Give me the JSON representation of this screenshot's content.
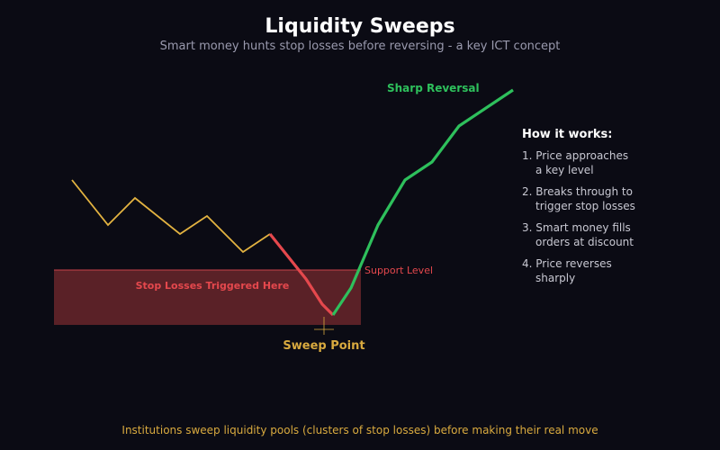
{
  "title": "Liquidity Sweeps",
  "subtitle": "Smart money hunts stop losses before reversing - a key ICT concept",
  "colors": {
    "background": "#0b0b14",
    "title": "#ffffff",
    "subtitle": "#9a9aae",
    "pre_sweep_line": "#e3b341",
    "sweep_line": "#e5484d",
    "reversal_line": "#2ec05c",
    "zone_fill": "#5a2127",
    "zone_border": "#c9424a",
    "zone_label": "#e5484d",
    "support_label": "#e5484d",
    "sweep_point_label": "#d9aa3f",
    "reversal_label": "#2ec05c",
    "panel_heading": "#ffffff",
    "panel_text": "#c8c8d2",
    "footer": "#d9aa3f"
  },
  "labels": {
    "zone": "Stop Losses Triggered Here",
    "support": "Support Level",
    "sweep_point": "Sweep Point",
    "reversal": "Sharp Reversal"
  },
  "how_it_works": {
    "heading": "How it works:",
    "steps": [
      {
        "line1": "1. Price approaches",
        "line2": "a key level"
      },
      {
        "line1": "2. Breaks through to",
        "line2": "trigger stop losses"
      },
      {
        "line1": "3. Smart money fills",
        "line2": "orders at discount"
      },
      {
        "line1": "4. Price reverses",
        "line2": "sharply"
      }
    ]
  },
  "footer": "Institutions sweep liquidity pools (clusters of stop losses) before making their real move"
}
